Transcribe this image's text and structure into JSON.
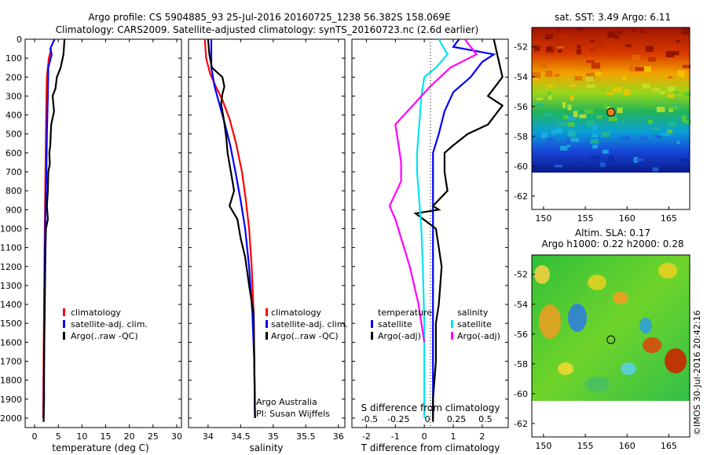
{
  "header": {
    "line1": "Argo profile: CS 5904885_93 25-Jul-2016 20160725_1238 56.382S 158.069E",
    "line2": "Climatology: CARS2009. Satellite-adjusted climatology: synTS_20160723.nc (2.6d earlier)"
  },
  "colors": {
    "climatology": "#ff0000",
    "satellite": "#0000ff",
    "argo": "#000000",
    "sal_satellite": "#00e5ee",
    "sal_argo": "#ff00ff"
  },
  "chart_data": [
    {
      "type": "line",
      "panel": "temperature",
      "xlabel": "temperature (deg C)",
      "ylabel": "",
      "xlim": [
        -2,
        31
      ],
      "ylim": [
        2050,
        0
      ],
      "x_ticks": [
        0,
        5,
        10,
        15,
        20,
        25,
        30
      ],
      "y_ticks": [
        0,
        100,
        200,
        300,
        400,
        500,
        600,
        700,
        800,
        900,
        1000,
        1100,
        1200,
        1300,
        1400,
        1500,
        1600,
        1700,
        1800,
        1900,
        2000
      ],
      "legend": [
        "climatology",
        "satellite-adj. clim.",
        "Argo(..raw -QC)"
      ],
      "series": [
        {
          "name": "climatology",
          "color": "#ff0000",
          "points": [
            [
              3.5,
              50
            ],
            [
              3.0,
              100
            ],
            [
              2.6,
              200
            ],
            [
              2.5,
              300
            ],
            [
              2.4,
              500
            ],
            [
              2.3,
              700
            ],
            [
              2.2,
              900
            ],
            [
              2.1,
              1100
            ],
            [
              2.0,
              1400
            ],
            [
              1.9,
              1700
            ],
            [
              1.8,
              2000
            ]
          ]
        },
        {
          "name": "satellite-adj. clim.",
          "color": "#0000ff",
          "points": [
            [
              4.2,
              0
            ],
            [
              3.3,
              50
            ],
            [
              3.6,
              80
            ],
            [
              2.9,
              150
            ],
            [
              2.8,
              300
            ],
            [
              2.6,
              500
            ],
            [
              2.5,
              700
            ],
            [
              2.3,
              900
            ],
            [
              2.2,
              1100
            ],
            [
              2.1,
              1400
            ],
            [
              2.0,
              1700
            ],
            [
              1.9,
              2000
            ]
          ]
        },
        {
          "name": "Argo(..raw -QC)",
          "color": "#000000",
          "points": [
            [
              6.3,
              0
            ],
            [
              6.1,
              80
            ],
            [
              5.5,
              150
            ],
            [
              4.7,
              200
            ],
            [
              4.4,
              260
            ],
            [
              3.8,
              300
            ],
            [
              4.1,
              380
            ],
            [
              3.5,
              450
            ],
            [
              3.4,
              500
            ],
            [
              3.3,
              560
            ],
            [
              3.1,
              600
            ],
            [
              3.2,
              660
            ],
            [
              2.9,
              700
            ],
            [
              2.8,
              800
            ],
            [
              2.6,
              880
            ],
            [
              2.8,
              950
            ],
            [
              2.4,
              1000
            ],
            [
              2.3,
              1100
            ],
            [
              2.2,
              1300
            ],
            [
              2.1,
              1500
            ],
            [
              2.0,
              1700
            ],
            [
              2.0,
              1900
            ],
            [
              1.9,
              2020
            ]
          ]
        }
      ]
    },
    {
      "type": "line",
      "panel": "salinity",
      "xlabel": "salinity",
      "ylabel": "",
      "xlim": [
        33.7,
        36.1
      ],
      "ylim": [
        2050,
        0
      ],
      "x_ticks": [
        34,
        34.5,
        35,
        35.5,
        36
      ],
      "legend": [
        "climatology",
        "satellite-adj. clim.",
        "Argo(..raw -QC)"
      ],
      "annotation": [
        "Argo Australia",
        "PI: Susan Wijffels"
      ],
      "series": [
        {
          "name": "climatology",
          "color": "#ff0000",
          "points": [
            [
              33.95,
              0
            ],
            [
              33.97,
              100
            ],
            [
              34.03,
              180
            ],
            [
              34.12,
              250
            ],
            [
              34.22,
              320
            ],
            [
              34.33,
              420
            ],
            [
              34.43,
              550
            ],
            [
              34.52,
              700
            ],
            [
              34.58,
              850
            ],
            [
              34.63,
              1000
            ],
            [
              34.67,
              1200
            ],
            [
              34.7,
              1450
            ],
            [
              34.71,
              1700
            ],
            [
              34.72,
              2000
            ]
          ]
        },
        {
          "name": "satellite-adj. clim.",
          "color": "#0000ff",
          "points": [
            [
              34.05,
              0
            ],
            [
              34.05,
              150
            ],
            [
              34.1,
              250
            ],
            [
              34.18,
              350
            ],
            [
              34.26,
              450
            ],
            [
              34.34,
              560
            ],
            [
              34.42,
              700
            ],
            [
              34.5,
              850
            ],
            [
              34.57,
              1000
            ],
            [
              34.63,
              1200
            ],
            [
              34.68,
              1450
            ],
            [
              34.71,
              1700
            ],
            [
              34.72,
              2000
            ]
          ]
        },
        {
          "name": "Argo(..raw -QC)",
          "color": "#000000",
          "points": [
            [
              34.0,
              0
            ],
            [
              34.02,
              80
            ],
            [
              34.06,
              150
            ],
            [
              34.22,
              200
            ],
            [
              34.25,
              250
            ],
            [
              34.22,
              290
            ],
            [
              34.2,
              340
            ],
            [
              34.24,
              420
            ],
            [
              34.28,
              520
            ],
            [
              34.3,
              600
            ],
            [
              34.35,
              700
            ],
            [
              34.4,
              800
            ],
            [
              34.33,
              880
            ],
            [
              34.45,
              950
            ],
            [
              34.5,
              1050
            ],
            [
              34.57,
              1150
            ],
            [
              34.63,
              1300
            ],
            [
              34.7,
              1450
            ],
            [
              34.71,
              1700
            ],
            [
              34.72,
              2000
            ]
          ]
        }
      ]
    },
    {
      "type": "line",
      "panel": "difference",
      "xlabel": "T difference from climatology",
      "xlabel2": "S difference from climatology",
      "ylabel": "",
      "xlim": [
        -2.5,
        2.9
      ],
      "ylim": [
        2050,
        0
      ],
      "x_ticks_T": [
        -2,
        -1,
        0,
        1,
        2
      ],
      "x_ticks_S": [
        "-0.5",
        "-0.25",
        "0",
        "0.25",
        "0.5"
      ],
      "legend_temperature": [
        "temperature",
        "satellite",
        "Argo(-adj)"
      ],
      "legend_salinity": [
        "salinity",
        "satellite",
        "Argo(-adj)"
      ],
      "series": [
        {
          "name": "temperature satellite",
          "color": "#0000ff",
          "points": [
            [
              1.2,
              0
            ],
            [
              1.0,
              40
            ],
            [
              2.4,
              80
            ],
            [
              2.0,
              120
            ],
            [
              1.6,
              200
            ],
            [
              1.0,
              280
            ],
            [
              0.7,
              380
            ],
            [
              0.5,
              500
            ],
            [
              0.3,
              600
            ],
            [
              0.3,
              750
            ],
            [
              0.3,
              900
            ],
            [
              0.3,
              1100
            ],
            [
              0.3,
              1400
            ],
            [
              0.3,
              1700
            ],
            [
              0.3,
              2000
            ]
          ]
        },
        {
          "name": "temperature Argo(-adj)",
          "color": "#000000",
          "points": [
            [
              2.4,
              0
            ],
            [
              2.7,
              200
            ],
            [
              2.2,
              300
            ],
            [
              2.7,
              350
            ],
            [
              2.2,
              450
            ],
            [
              1.5,
              500
            ],
            [
              1.0,
              560
            ],
            [
              0.7,
              600
            ],
            [
              0.7,
              700
            ],
            [
              0.8,
              800
            ],
            [
              0.3,
              880
            ],
            [
              0.5,
              900
            ],
            [
              -0.3,
              920
            ],
            [
              0.4,
              1000
            ],
            [
              0.5,
              1100
            ],
            [
              0.6,
              1200
            ],
            [
              0.5,
              1400
            ],
            [
              0.4,
              1500
            ],
            [
              0.4,
              1700
            ],
            [
              0.3,
              1900
            ],
            [
              0.3,
              2020
            ]
          ]
        },
        {
          "name": "salinity satellite",
          "color": "#00e5ee",
          "points": [
            [
              0.5,
              0
            ],
            [
              0.8,
              80
            ],
            [
              0.4,
              150
            ],
            [
              0.0,
              200
            ],
            [
              -0.1,
              300
            ],
            [
              -0.15,
              400
            ],
            [
              -0.2,
              500
            ],
            [
              -0.25,
              600
            ],
            [
              -0.25,
              700
            ],
            [
              -0.2,
              800
            ],
            [
              -0.1,
              1000
            ],
            [
              -0.05,
              1200
            ],
            [
              0.0,
              1500
            ],
            [
              0.0,
              2000
            ]
          ]
        },
        {
          "name": "salinity Argo(-adj)",
          "color": "#ff00ff",
          "points": [
            [
              1.4,
              0
            ],
            [
              1.8,
              80
            ],
            [
              0.9,
              150
            ],
            [
              0.2,
              250
            ],
            [
              -0.4,
              350
            ],
            [
              -1.0,
              450
            ],
            [
              -0.9,
              550
            ],
            [
              -0.8,
              650
            ],
            [
              -0.8,
              750
            ],
            [
              -1.2,
              880
            ],
            [
              -1.0,
              950
            ],
            [
              -0.8,
              1050
            ],
            [
              -0.5,
              1200
            ],
            [
              -0.2,
              1400
            ],
            [
              0.0,
              1600
            ]
          ]
        }
      ]
    }
  ],
  "maps": {
    "sst": {
      "title": "sat. SST: 3.49  Argo: 6.11",
      "lat_ticks": [
        "-52",
        "-54",
        "-56",
        "-58",
        "-60",
        "-62"
      ],
      "lon_ticks": [
        "150",
        "155",
        "160",
        "165"
      ],
      "profile_lon": 158.069,
      "profile_lat": -56.382
    },
    "sla": {
      "title1": "Altim. SLA: 0.17",
      "title2": "Argo h1000: 0.22 h2000: 0.28",
      "lat_ticks": [
        "-52",
        "-54",
        "-56",
        "-58",
        "-60",
        "-62"
      ],
      "lon_ticks": [
        "150",
        "155",
        "160",
        "165"
      ],
      "profile_lon": 158.069,
      "profile_lat": -56.382
    }
  },
  "credit": "©IMOS 30-Jul-2016 20:42:16"
}
